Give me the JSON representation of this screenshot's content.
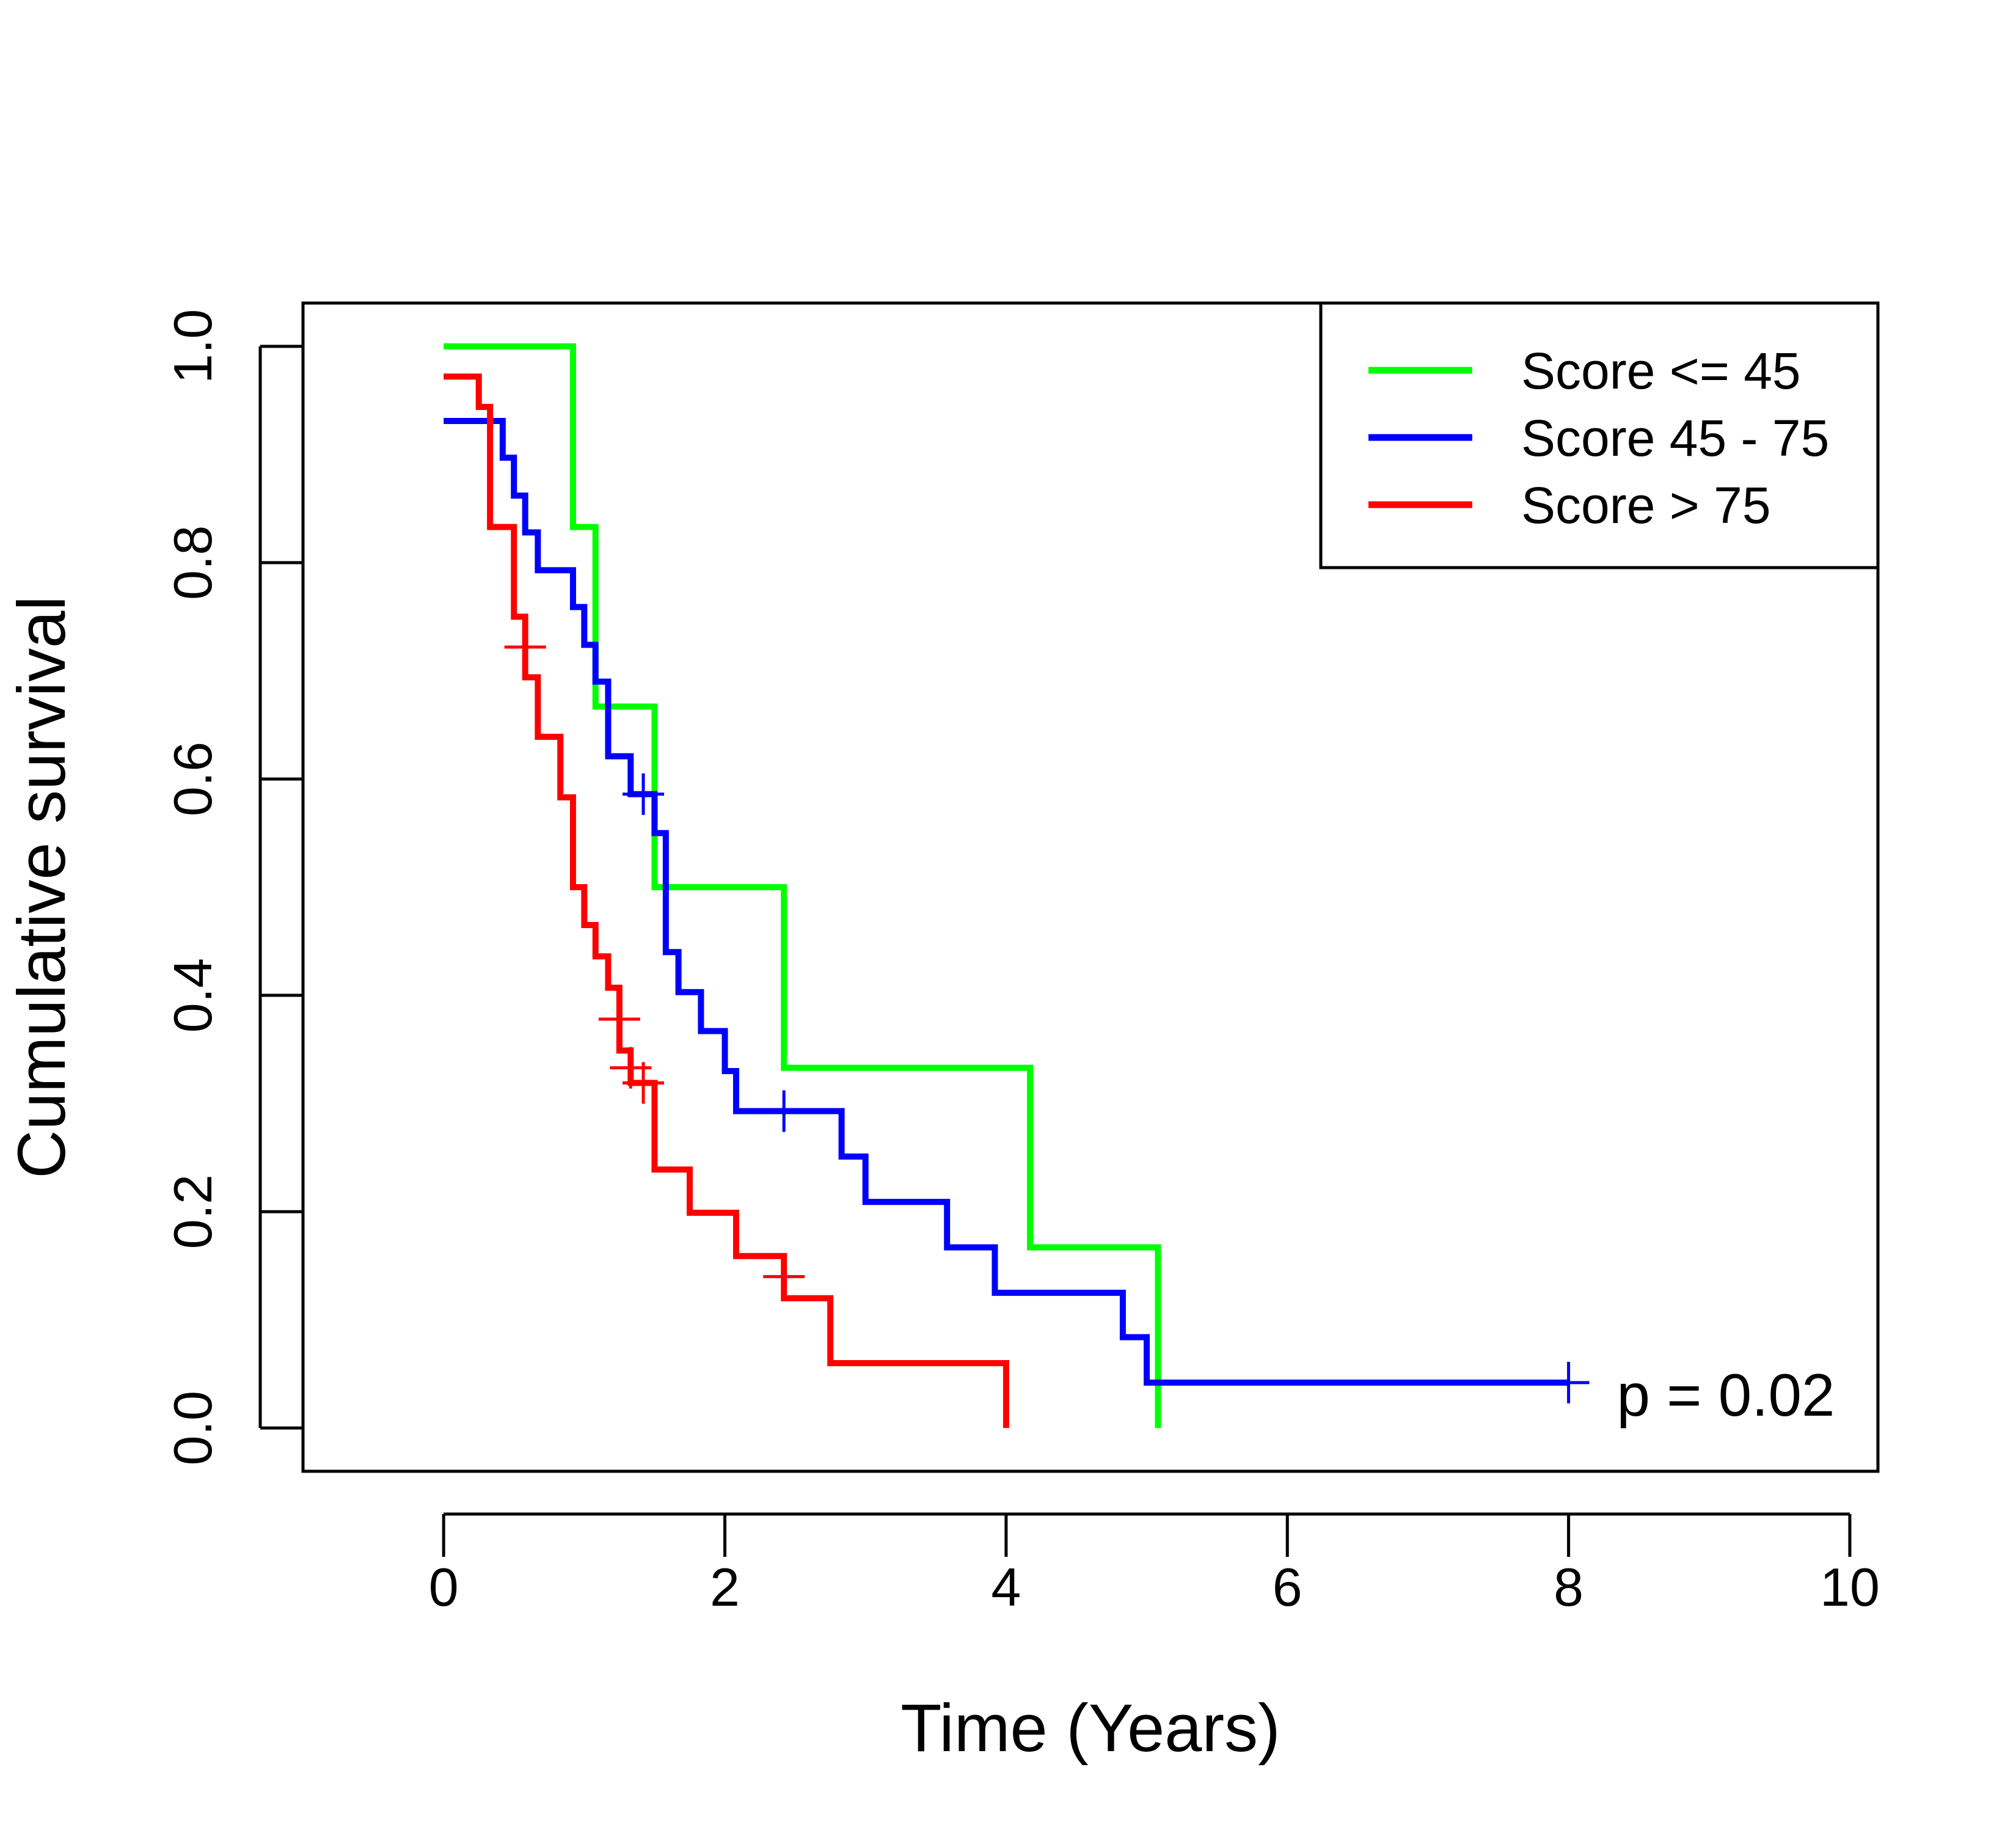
{
  "chart_data": {
    "type": "line",
    "step": true,
    "xlabel": "Time (Years)",
    "ylabel": "Cumulative survival",
    "xlim": [
      -1,
      10.2
    ],
    "ylim": [
      -0.04,
      1.04
    ],
    "xticks": [
      0,
      2,
      4,
      6,
      8,
      10
    ],
    "xtick_labels": [
      "0",
      "2",
      "4",
      "6",
      "8",
      "10"
    ],
    "yticks": [
      0.0,
      0.2,
      0.4,
      0.6,
      0.8,
      1.0
    ],
    "ytick_labels": [
      "0.0",
      "0.2",
      "0.4",
      "0.6",
      "0.8",
      "1.0"
    ],
    "grid": false,
    "legend": {
      "position": "top-right"
    },
    "annotation": "p = 0.02",
    "series": [
      {
        "name": "Score <= 45",
        "color": "#00ff00",
        "points": [
          [
            0,
            1.0
          ],
          [
            0.92,
            0.833
          ],
          [
            1.08,
            0.667
          ],
          [
            1.5,
            0.5
          ],
          [
            2.42,
            0.333
          ],
          [
            4.17,
            0.167
          ],
          [
            5.08,
            0.0
          ]
        ],
        "censored": []
      },
      {
        "name": "Score 45 - 75",
        "color": "#0000ff",
        "points": [
          [
            0,
            0.931
          ],
          [
            0.42,
            0.897
          ],
          [
            0.5,
            0.862
          ],
          [
            0.58,
            0.828
          ],
          [
            0.67,
            0.793
          ],
          [
            0.92,
            0.759
          ],
          [
            1.0,
            0.724
          ],
          [
            1.08,
            0.69
          ],
          [
            1.17,
            0.621
          ],
          [
            1.33,
            0.586
          ],
          [
            1.5,
            0.55
          ],
          [
            1.58,
            0.44
          ],
          [
            1.67,
            0.403
          ],
          [
            1.83,
            0.367
          ],
          [
            2.0,
            0.33
          ],
          [
            2.08,
            0.293
          ],
          [
            2.83,
            0.251
          ],
          [
            3.0,
            0.209
          ],
          [
            3.58,
            0.167
          ],
          [
            3.92,
            0.125
          ],
          [
            4.83,
            0.084
          ],
          [
            5.0,
            0.042
          ],
          [
            8.0,
            0.042
          ]
        ],
        "censored": [
          [
            1.42,
            0.586
          ],
          [
            2.42,
            0.293
          ],
          [
            8.0,
            0.042
          ]
        ]
      },
      {
        "name": "Score > 75",
        "color": "#ff0000",
        "points": [
          [
            0,
            0.972
          ],
          [
            0.25,
            0.944
          ],
          [
            0.33,
            0.833
          ],
          [
            0.5,
            0.75
          ],
          [
            0.58,
            0.694
          ],
          [
            0.67,
            0.639
          ],
          [
            0.83,
            0.583
          ],
          [
            0.92,
            0.5
          ],
          [
            1.0,
            0.465
          ],
          [
            1.08,
            0.436
          ],
          [
            1.17,
            0.407
          ],
          [
            1.25,
            0.349
          ],
          [
            1.33,
            0.319
          ],
          [
            1.5,
            0.239
          ],
          [
            1.75,
            0.199
          ],
          [
            2.08,
            0.159
          ],
          [
            2.42,
            0.12
          ],
          [
            2.75,
            0.06
          ],
          [
            4.0,
            0.0
          ]
        ],
        "censored": [
          [
            0.58,
            0.722
          ],
          [
            1.25,
            0.378
          ],
          [
            1.33,
            0.333
          ],
          [
            1.42,
            0.319
          ],
          [
            1.42,
            0.319
          ],
          [
            2.42,
            0.14
          ]
        ]
      }
    ]
  }
}
